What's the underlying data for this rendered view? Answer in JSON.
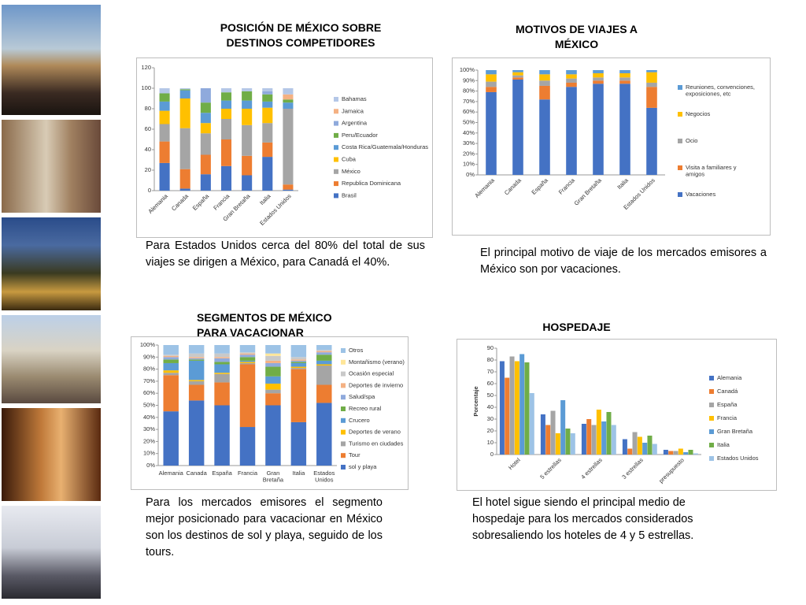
{
  "chart_data": [
    {
      "type": "stacked_bar",
      "title": "POSICIÓN DE MÉXICO SOBRE DESTINOS COMPETIDORES",
      "caption": "Para Estados Unidos cerca del 80% del total de sus viajes se dirigen a México, para Canadá el 40%.",
      "categories": [
        "Alemania",
        "Canada",
        "España",
        "Francia",
        "Gran Bretaña",
        "Italia",
        "Estados Unidos"
      ],
      "series": [
        {
          "name": "Brasil",
          "color": "#4472c4",
          "values": [
            27,
            2,
            16,
            24,
            15,
            33,
            1
          ]
        },
        {
          "name": "Republica Dominicana",
          "color": "#ed7d31",
          "values": [
            21,
            19,
            19,
            26,
            19,
            14,
            5
          ]
        },
        {
          "name": "México",
          "color": "#a5a5a5",
          "values": [
            17,
            40,
            21,
            20,
            30,
            19,
            74
          ]
        },
        {
          "name": "Cuba",
          "color": "#ffc000",
          "values": [
            13,
            29,
            10,
            10,
            16,
            15,
            0
          ]
        },
        {
          "name": "Costa Rica/Guatemala/Honduras",
          "color": "#5b9bd5",
          "values": [
            9,
            8,
            10,
            8,
            8,
            6,
            6
          ]
        },
        {
          "name": "Peru/Ecuador",
          "color": "#70ad47",
          "values": [
            8,
            1,
            10,
            8,
            9,
            7,
            3
          ]
        },
        {
          "name": "Argentina",
          "color": "#8faadc",
          "values": [
            0,
            0,
            14,
            0,
            0,
            3,
            0
          ]
        },
        {
          "name": "Jamaica",
          "color": "#f4b183",
          "values": [
            0,
            0,
            0,
            0,
            0,
            0,
            5
          ]
        },
        {
          "name": "Bahamas",
          "color": "#b4c7e7",
          "values": [
            5,
            1,
            0,
            4,
            3,
            3,
            6
          ]
        }
      ],
      "ylim": [
        0,
        120
      ],
      "yticks": [
        0,
        20,
        40,
        60,
        80,
        100,
        120
      ],
      "grid": false
    },
    {
      "type": "stacked_bar",
      "title": "MOTIVOS DE VIAJES A MÉXICO",
      "caption": "El principal motivo de viaje de los mercados emisores a México son por vacaciones.",
      "categories": [
        "Alemania",
        "Canada",
        "España",
        "Francia",
        "Gran Bretaña",
        "Italia",
        "Estados Unidos"
      ],
      "series": [
        {
          "name": "Vacaciones",
          "color": "#4472c4",
          "values": [
            79,
            91,
            72,
            84,
            87,
            87,
            64
          ]
        },
        {
          "name": "Visita a familiares y amigos",
          "color": "#ed7d31",
          "values": [
            5,
            2,
            13,
            4,
            3,
            3,
            20
          ]
        },
        {
          "name": "Ocio",
          "color": "#a5a5a5",
          "values": [
            5,
            2,
            5,
            4,
            3,
            3,
            4
          ]
        },
        {
          "name": "Negocios",
          "color": "#ffc000",
          "values": [
            7,
            3,
            6,
            4,
            4,
            4,
            10
          ]
        },
        {
          "name": "Reuniones, convenciones, exposiciones, etc",
          "color": "#5b9bd5",
          "values": [
            4,
            2,
            4,
            4,
            3,
            3,
            2
          ]
        }
      ],
      "ylim": [
        0,
        100
      ],
      "yticks": [
        {
          "value": 0,
          "label": "0%"
        },
        {
          "value": 10,
          "label": "10%"
        },
        {
          "value": 20,
          "label": "20%"
        },
        {
          "value": 30,
          "label": "30%"
        },
        {
          "value": 40,
          "label": "40%"
        },
        {
          "value": 50,
          "label": "50%"
        },
        {
          "value": 60,
          "label": "60%"
        },
        {
          "value": 70,
          "label": "70%"
        },
        {
          "value": 80,
          "label": "80%"
        },
        {
          "value": 90,
          "label": "90%"
        },
        {
          "value": 100,
          "label": "100%"
        }
      ],
      "grid": false
    },
    {
      "type": "stacked_bar",
      "title": "SEGMENTOS DE MÉXICO PARA VACACIONAR",
      "caption": "Para los mercados emisores el segmento mejor posicionado para vacacionar en México son los destinos de sol y playa, seguido de los tours.",
      "categories": [
        "Alemania",
        "Canada",
        "España",
        "Francia",
        "Gran Bretaña",
        "Italia",
        "Estados Unidos"
      ],
      "series": [
        {
          "name": "sol y playa",
          "color": "#4472c4",
          "values": [
            45,
            54,
            50,
            32,
            50,
            36,
            52
          ]
        },
        {
          "name": "Tour",
          "color": "#ed7d31",
          "values": [
            30,
            13,
            19,
            52,
            10,
            44,
            15
          ]
        },
        {
          "name": "Turismo en ciudades",
          "color": "#a5a5a5",
          "values": [
            2,
            3,
            7,
            1,
            3,
            1,
            16
          ]
        },
        {
          "name": "Deportes de verano",
          "color": "#ffc000",
          "values": [
            2,
            1,
            1,
            1,
            5,
            1,
            1
          ]
        },
        {
          "name": "Crucero",
          "color": "#5b9bd5",
          "values": [
            6,
            16,
            7,
            1,
            6,
            3,
            3
          ]
        },
        {
          "name": "Recreo rural",
          "color": "#70ad47",
          "values": [
            3,
            1,
            2,
            3,
            8,
            1,
            5
          ]
        },
        {
          "name": "Salud/spa",
          "color": "#8faadc",
          "values": [
            2,
            1,
            3,
            2,
            3,
            1,
            2
          ]
        },
        {
          "name": "Deportes de invierno",
          "color": "#f4b183",
          "values": [
            1,
            1,
            1,
            1,
            2,
            1,
            1
          ]
        },
        {
          "name": "Ocasión especial",
          "color": "#c9c9c9",
          "values": [
            1,
            3,
            3,
            1,
            4,
            2,
            1
          ]
        },
        {
          "name": "Montañismo (verano)",
          "color": "#ffe699",
          "values": [
            0,
            0,
            0,
            0,
            2,
            0,
            0
          ]
        },
        {
          "name": "Otros",
          "color": "#9dc3e6",
          "values": [
            8,
            7,
            7,
            6,
            7,
            10,
            4
          ]
        }
      ],
      "ylim": [
        0,
        100
      ],
      "yticks": [
        {
          "value": 0,
          "label": "0%"
        },
        {
          "value": 10,
          "label": "10%"
        },
        {
          "value": 20,
          "label": "20%"
        },
        {
          "value": 30,
          "label": "30%"
        },
        {
          "value": 40,
          "label": "40%"
        },
        {
          "value": 50,
          "label": "50%"
        },
        {
          "value": 60,
          "label": "60%"
        },
        {
          "value": 70,
          "label": "70%"
        },
        {
          "value": 80,
          "label": "80%"
        },
        {
          "value": 90,
          "label": "90%"
        },
        {
          "value": 100,
          "label": "100%"
        }
      ],
      "grid": false
    },
    {
      "type": "grouped_bar",
      "title": "HOSPEDAJE",
      "caption": "El hotel sigue siendo el principal medio de hospedaje para los mercados considerados sobresaliendo los hoteles de 4 y 5 estrellas.",
      "y_label": "Porcentaje",
      "categories": [
        "Hotel",
        "5 estrellas",
        "4 estrellas",
        "3 estrellas",
        "presupuesto"
      ],
      "series": [
        {
          "name": "Alemania",
          "color": "#4472c4",
          "values": [
            79,
            34,
            26,
            13,
            4
          ]
        },
        {
          "name": "Canadá",
          "color": "#ed7d31",
          "values": [
            65,
            25,
            30,
            5,
            3
          ]
        },
        {
          "name": "España",
          "color": "#a5a5a5",
          "values": [
            83,
            37,
            25,
            19,
            3
          ]
        },
        {
          "name": "Francia",
          "color": "#ffc000",
          "values": [
            79,
            18,
            38,
            15,
            5
          ]
        },
        {
          "name": "Gran Bretaña",
          "color": "#5b9bd5",
          "values": [
            85,
            46,
            28,
            10,
            2
          ]
        },
        {
          "name": "Italia",
          "color": "#70ad47",
          "values": [
            78,
            22,
            36,
            16,
            4
          ]
        },
        {
          "name": "Estados Unidos",
          "color": "#9dc3e6",
          "values": [
            52,
            18,
            25,
            9,
            1
          ]
        }
      ],
      "ylim": [
        0,
        90
      ],
      "yticks": [
        0,
        10,
        20,
        30,
        40,
        50,
        60,
        70,
        80,
        90
      ],
      "grid": false
    }
  ]
}
